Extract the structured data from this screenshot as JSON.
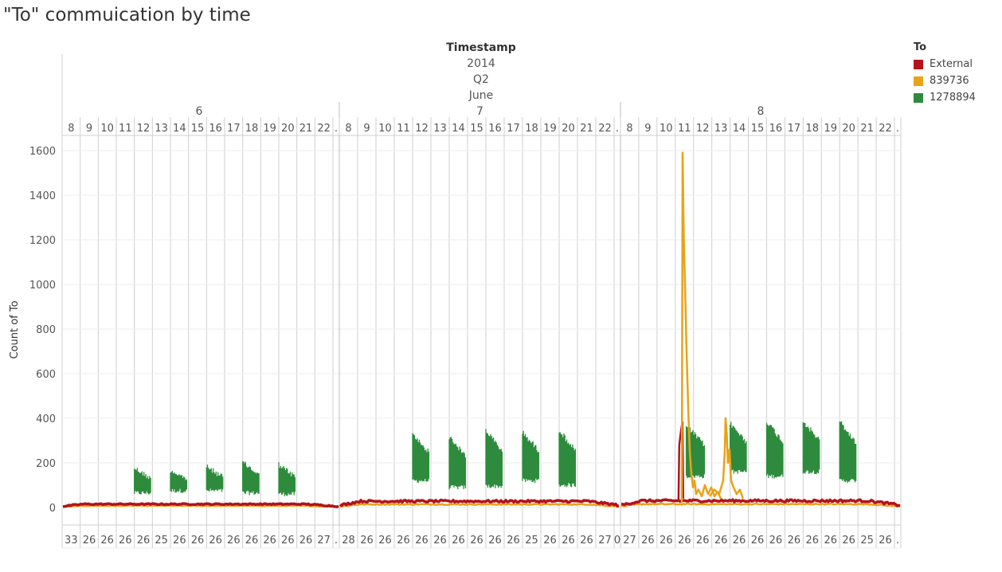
{
  "title": "\"To\" commuication by time",
  "colors": {
    "External": "#b5121b",
    "839736": "#e8a317",
    "1278894": "#2e8b3d",
    "grid": "#cfcfcf",
    "text": "#555555"
  },
  "legend": {
    "title": "To",
    "items": [
      {
        "label": "External",
        "color": "#b5121b"
      },
      {
        "label": "839736",
        "color": "#e8a317"
      },
      {
        "label": "1278894",
        "color": "#2e8b3d"
      }
    ]
  },
  "chart_data": {
    "type": "line",
    "title": "\"To\" commuication by time",
    "ylabel": "Count of To",
    "xlabel": "Timestamp",
    "header": {
      "field": "Timestamp",
      "year": "2014",
      "quarter": "Q2",
      "month": "June"
    },
    "ylim": [
      0,
      1650
    ],
    "yticks": [
      0,
      200,
      400,
      600,
      800,
      1000,
      1200,
      1400,
      1600
    ],
    "grid": true,
    "legend_position": "right",
    "days": [
      {
        "label": "6",
        "hours": [
          "8",
          "9",
          "10",
          "11",
          "12",
          "13",
          "14",
          "15",
          "16",
          "17",
          "18",
          "19",
          "20",
          "21",
          "22",
          "."
        ],
        "minutes": [
          "33",
          "26",
          "26",
          "26",
          "26",
          "25",
          "26",
          "26",
          "26",
          "26",
          "26",
          "26",
          "26",
          "26",
          "27",
          "."
        ]
      },
      {
        "label": "7",
        "hours": [
          "8",
          "9",
          "10",
          "11",
          "12",
          "13",
          "14",
          "15",
          "16",
          "17",
          "18",
          "19",
          "20",
          "21",
          "22",
          "."
        ],
        "minutes": [
          "28",
          "26",
          "26",
          "26",
          "26",
          "26",
          "26",
          "26",
          "26",
          "26",
          "25",
          "26",
          "26",
          "26",
          "27",
          "0"
        ]
      },
      {
        "label": "8",
        "hours": [
          "8",
          "9",
          "10",
          "11",
          "12",
          "13",
          "14",
          "15",
          "16",
          "17",
          "18",
          "19",
          "20",
          "21",
          "22",
          "."
        ],
        "minutes": [
          "27",
          "26",
          "26",
          "26",
          "26",
          "26",
          "26",
          "26",
          "26",
          "26",
          "26",
          "26",
          "26",
          "25",
          "26",
          "."
        ]
      }
    ],
    "series": [
      {
        "name": "External",
        "baseline": [
          {
            "day": "6",
            "start": 8,
            "end": 22,
            "level": 15
          },
          {
            "day": "7",
            "start": 8,
            "end": 22,
            "level": 28
          },
          {
            "day": "8",
            "start": 8,
            "end": 22,
            "level": 30
          }
        ],
        "peaks": [
          {
            "day": "8",
            "hour": 11.35,
            "value": 385
          }
        ]
      },
      {
        "name": "839736",
        "baseline": [
          {
            "day": "6",
            "start": 8,
            "end": 22,
            "level": 8
          },
          {
            "day": "7",
            "start": 8,
            "end": 22,
            "level": 14
          },
          {
            "day": "8",
            "start": 8,
            "end": 22,
            "level": 15
          }
        ],
        "peaks": [
          {
            "day": "8",
            "hour": 11.4,
            "value": 1590
          },
          {
            "day": "8",
            "hour": 13.75,
            "value": 400
          }
        ]
      },
      {
        "name": "1278894",
        "bursts": [
          {
            "day": "6",
            "start": 12,
            "end": 12.9,
            "low": 55,
            "high": 190
          },
          {
            "day": "6",
            "start": 14,
            "end": 14.9,
            "low": 65,
            "high": 180
          },
          {
            "day": "6",
            "start": 16,
            "end": 16.9,
            "low": 65,
            "high": 195
          },
          {
            "day": "6",
            "start": 18,
            "end": 18.9,
            "low": 55,
            "high": 215
          },
          {
            "day": "6",
            "start": 20,
            "end": 20.9,
            "low": 50,
            "high": 205
          },
          {
            "day": "7",
            "start": 12,
            "end": 12.9,
            "low": 110,
            "high": 340
          },
          {
            "day": "7",
            "start": 14,
            "end": 14.9,
            "low": 80,
            "high": 330
          },
          {
            "day": "7",
            "start": 16,
            "end": 16.9,
            "low": 85,
            "high": 360
          },
          {
            "day": "7",
            "start": 18,
            "end": 18.9,
            "low": 110,
            "high": 350
          },
          {
            "day": "7",
            "start": 20,
            "end": 20.9,
            "low": 90,
            "high": 360
          },
          {
            "day": "8",
            "start": 11.6,
            "end": 12.6,
            "low": 130,
            "high": 380
          },
          {
            "day": "8",
            "start": 14,
            "end": 14.9,
            "low": 150,
            "high": 390
          },
          {
            "day": "8",
            "start": 16,
            "end": 16.9,
            "low": 130,
            "high": 400
          },
          {
            "day": "8",
            "start": 18,
            "end": 18.9,
            "low": 150,
            "high": 400
          },
          {
            "day": "8",
            "start": 20,
            "end": 20.9,
            "low": 110,
            "high": 400
          }
        ]
      }
    ]
  }
}
